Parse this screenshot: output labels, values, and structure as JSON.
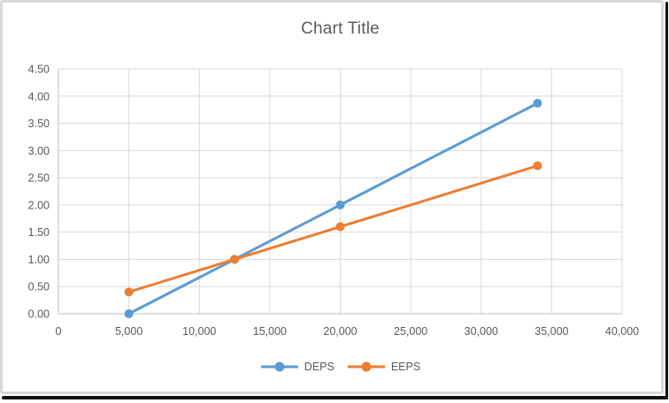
{
  "window": {
    "background": "#ffffff",
    "chart_border_color": "#d9d9d9",
    "outer_edge_color": "#111111"
  },
  "chart_data": {
    "type": "line",
    "title": "Chart Title",
    "x": [
      5000,
      12500,
      20000,
      34000
    ],
    "series": [
      {
        "name": "DEPS",
        "color": "#5B9BD5",
        "values": [
          0.0,
          1.0,
          2.0,
          3.87
        ]
      },
      {
        "name": "EEPS",
        "color": "#ED7D31",
        "values": [
          0.4,
          1.0,
          1.6,
          2.72
        ]
      }
    ],
    "xlim": [
      0,
      40000
    ],
    "ylim": [
      0,
      4.5
    ],
    "x_ticks": [
      0,
      5000,
      10000,
      15000,
      20000,
      25000,
      30000,
      35000,
      40000
    ],
    "x_tick_labels": [
      "0",
      "5,000",
      "10,000",
      "15,000",
      "20,000",
      "25,000",
      "30,000",
      "35,000",
      "40,000"
    ],
    "y_ticks": [
      0,
      0.5,
      1,
      1.5,
      2,
      2.5,
      3,
      3.5,
      4,
      4.5
    ],
    "y_tick_labels": [
      "0.00",
      "0.50",
      "1.00",
      "1.50",
      "2.00",
      "2.50",
      "3.00",
      "3.50",
      "4.00",
      "4.50"
    ],
    "grid": true,
    "marker": "circle",
    "legend_position": "bottom",
    "colors": {
      "gridline": "#d9d9d9",
      "axis_line": "#bfbfbf",
      "tick_label": "#595959",
      "title": "#595959",
      "legend_text": "#595959"
    }
  }
}
